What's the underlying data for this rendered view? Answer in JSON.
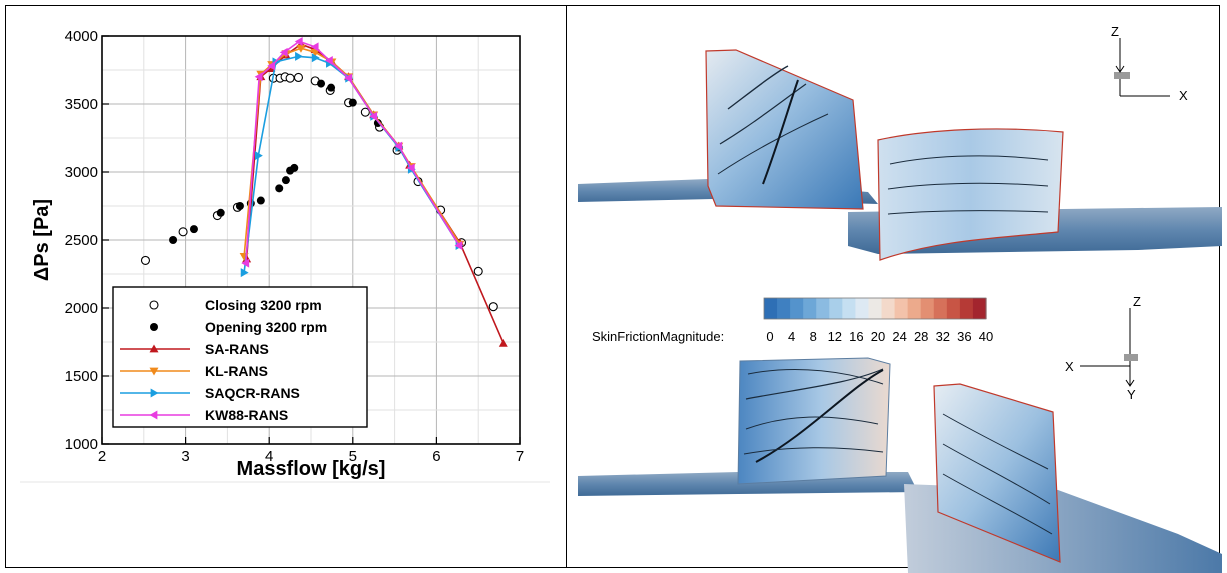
{
  "chart_data": {
    "type": "line",
    "xlabel": "Massflow [kg/s]",
    "ylabel": "ΔPs [Pa]",
    "xlim": [
      2,
      7
    ],
    "ylim": [
      1000,
      4000
    ],
    "xticks": [
      2,
      3,
      4,
      5,
      6,
      7
    ],
    "yticks": [
      1000,
      1500,
      2000,
      2500,
      3000,
      3500,
      4000
    ],
    "grid": true,
    "legend_position": "bottom-left",
    "series": [
      {
        "name": "Closing 3200 rpm",
        "style": "markers",
        "marker": "open-circle",
        "color": "#000000",
        "x": [
          2.52,
          2.97,
          3.38,
          3.62,
          4.05,
          4.13,
          4.19,
          4.25,
          4.35,
          4.55,
          4.73,
          4.95,
          5.15,
          5.32,
          5.53,
          5.78,
          6.05,
          6.3,
          6.5,
          6.68
        ],
        "y": [
          2350,
          2560,
          2680,
          2740,
          3690,
          3690,
          3700,
          3690,
          3695,
          3670,
          3600,
          3510,
          3440,
          3330,
          3160,
          2930,
          2720,
          2480,
          2270,
          2010
        ]
      },
      {
        "name": "Opening 3200 rpm",
        "style": "markers",
        "marker": "filled-circle",
        "color": "#000000",
        "x": [
          2.85,
          3.1,
          3.42,
          3.65,
          3.78,
          3.9,
          4.12,
          4.2,
          4.25,
          4.3,
          4.62,
          4.74,
          5.0,
          5.3,
          5.55
        ],
        "y": [
          2500,
          2580,
          2700,
          2750,
          2770,
          2790,
          2880,
          2940,
          3010,
          3030,
          3650,
          3620,
          3510,
          3360,
          3180
        ]
      },
      {
        "name": "SA-RANS",
        "style": "line",
        "marker": "triangle-up",
        "color": "#c0181e",
        "x": [
          3.73,
          3.9,
          4.02,
          4.2,
          4.38,
          4.55,
          4.75,
          4.95,
          5.25,
          5.55,
          5.68,
          6.28,
          6.8
        ],
        "y": [
          2360,
          3700,
          3760,
          3860,
          3940,
          3900,
          3810,
          3700,
          3420,
          3190,
          3050,
          2480,
          1740
        ]
      },
      {
        "name": "KL-RANS",
        "style": "line",
        "marker": "triangle-down",
        "color": "#f08a1c",
        "x": [
          3.7,
          3.9,
          4.03,
          4.2,
          4.38,
          4.55,
          4.75,
          4.95,
          5.25,
          5.55,
          5.7,
          6.28
        ],
        "y": [
          2380,
          3720,
          3790,
          3870,
          3910,
          3880,
          3810,
          3700,
          3420,
          3190,
          3040,
          2470
        ]
      },
      {
        "name": "SAQCR-RANS",
        "style": "line",
        "marker": "triangle-right",
        "color": "#1a9ee0",
        "x": [
          3.7,
          3.87,
          4.08,
          4.35,
          4.55,
          4.72,
          4.95,
          5.25,
          5.55,
          5.7,
          6.27
        ],
        "y": [
          2260,
          3120,
          3810,
          3850,
          3840,
          3800,
          3690,
          3410,
          3180,
          3020,
          2460
        ]
      },
      {
        "name": "KW88-RANS",
        "style": "line",
        "marker": "triangle-left",
        "color": "#e83ce0",
        "x": [
          3.72,
          3.88,
          4.03,
          4.18,
          4.36,
          4.55,
          4.72,
          4.95,
          5.25,
          5.55,
          5.7,
          6.27
        ],
        "y": [
          2330,
          3700,
          3780,
          3880,
          3960,
          3920,
          3820,
          3690,
          3410,
          3190,
          3030,
          2460
        ]
      }
    ]
  },
  "colorbar": {
    "label": "SkinFrictionMagnitude:",
    "ticks": [
      "0",
      "4",
      "8",
      "12",
      "16",
      "20",
      "24",
      "28",
      "32",
      "36",
      "40"
    ],
    "colors": [
      "#2e6fb5",
      "#3f80c1",
      "#5493cc",
      "#6da7d7",
      "#8bbbe1",
      "#a9cfea",
      "#c5dff1",
      "#dde9f3",
      "#ece9e5",
      "#f3d9ca",
      "#f3c2aa",
      "#ecaa8c",
      "#e38f72",
      "#d6715a",
      "#c85545",
      "#b63a36",
      "#a3252e"
    ]
  },
  "axes_top": {
    "vertical": "Z",
    "horizontal": "X"
  },
  "axes_bottom": {
    "vertical": "Z",
    "horizontal": "X",
    "down": "Y"
  }
}
